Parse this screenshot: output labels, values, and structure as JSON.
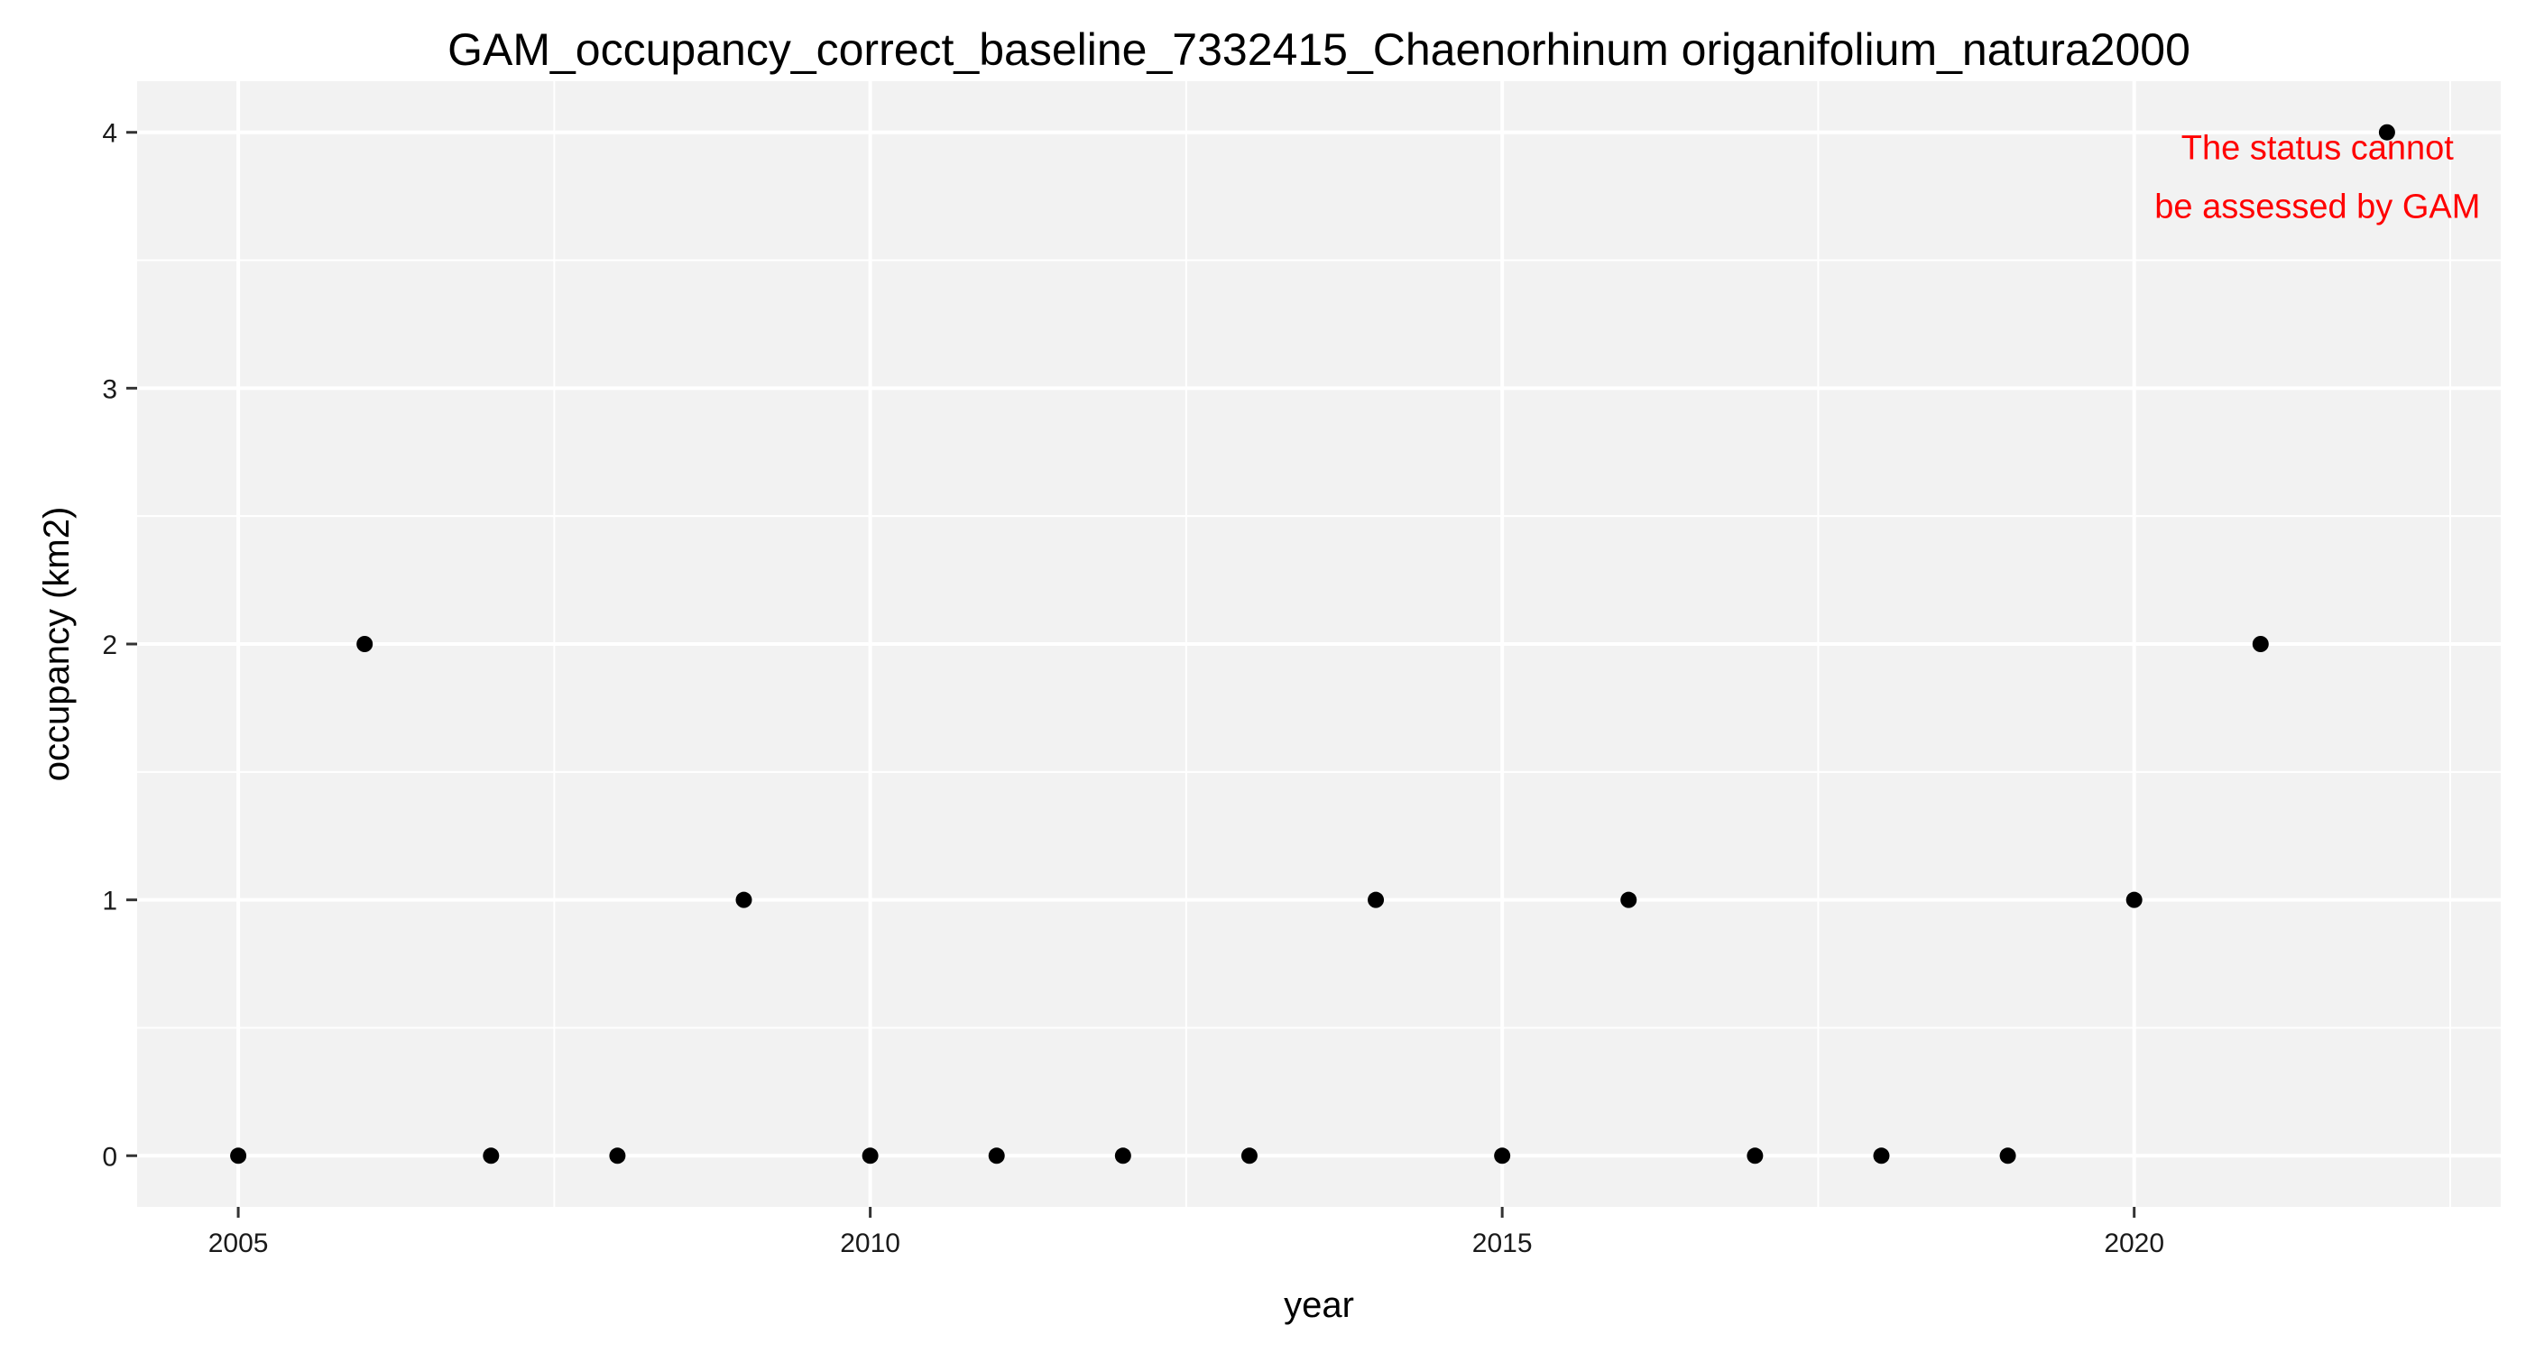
{
  "chart_data": {
    "type": "scatter",
    "title": "GAM_occupancy_correct_baseline_7332415_Chaenorhinum origanifolium_natura2000",
    "xlabel": "year",
    "ylabel": "occupancy (km2)",
    "xlim": [
      2004.2,
      2022.9
    ],
    "ylim": [
      -0.2,
      4.2
    ],
    "x_ticks": [
      2005,
      2010,
      2015,
      2020
    ],
    "x_tick_labels": [
      "2005",
      "2010",
      "2015",
      "2020"
    ],
    "y_ticks": [
      0,
      1,
      2,
      3,
      4
    ],
    "y_tick_labels": [
      "0",
      "1",
      "2",
      "3",
      "4"
    ],
    "grid": true,
    "legend": "none",
    "panel_color": "#f2f2f2",
    "grid_color": "#ffffff",
    "point_color": "#000000",
    "x": [
      2005,
      2006,
      2007,
      2008,
      2009,
      2010,
      2011,
      2012,
      2013,
      2014,
      2015,
      2016,
      2017,
      2018,
      2019,
      2020,
      2021,
      2022
    ],
    "y": [
      0,
      2,
      0,
      0,
      1,
      0,
      0,
      0,
      0,
      1,
      0,
      1,
      0,
      0,
      0,
      1,
      2,
      4
    ],
    "annotation": {
      "lines": [
        "The status cannot",
        "be assessed by GAM"
      ],
      "color": "#ff0000"
    }
  }
}
